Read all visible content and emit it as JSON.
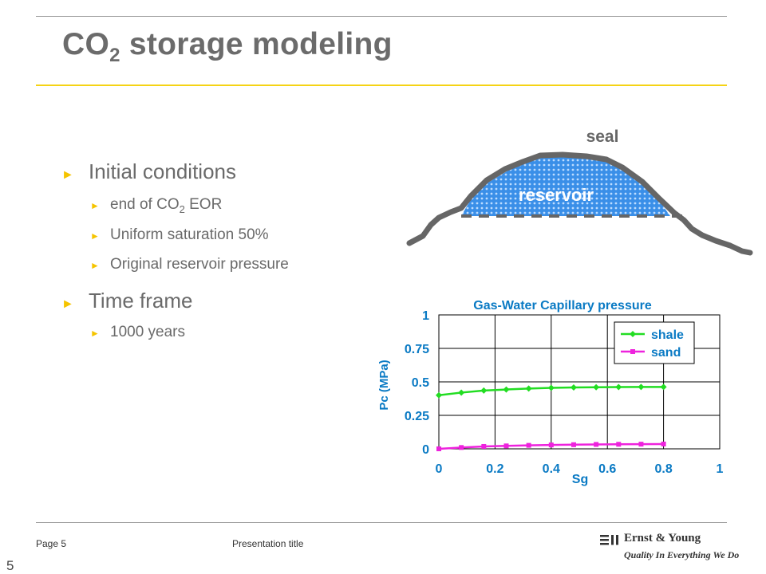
{
  "slide": {
    "title_main": "CO",
    "title_sub": "2",
    "title_rest": " storage modeling"
  },
  "bullets": {
    "initial_conditions": "Initial conditions",
    "eor_pre": "end of CO",
    "eor_sub": "2",
    "eor_post": " EOR",
    "uniform_saturation": "Uniform saturation 50%",
    "original_pressure": "Original reservoir pressure",
    "time_frame": "Time frame",
    "years": "1000 years"
  },
  "diagram": {
    "seal_label": "seal",
    "reservoir_label": "reservoir"
  },
  "chart_data": {
    "type": "line",
    "title": "Gas-Water Capillary pressure",
    "xlabel": "Sg",
    "ylabel": "Pc (MPa)",
    "xlim": [
      0,
      1
    ],
    "ylim": [
      0,
      1
    ],
    "x_ticks": [
      "0",
      "0.2",
      "0.4",
      "0.6",
      "0.8",
      "1"
    ],
    "y_ticks": [
      "0",
      "0.25",
      "0.5",
      "0.75",
      "1"
    ],
    "grid": true,
    "legend": "top-right",
    "series": [
      {
        "name": "shale",
        "color": "#22dd22",
        "x": [
          0,
          0.08,
          0.16,
          0.24,
          0.32,
          0.4,
          0.48,
          0.56,
          0.64,
          0.72,
          0.8
        ],
        "values": [
          0.4,
          0.42,
          0.435,
          0.443,
          0.45,
          0.455,
          0.458,
          0.46,
          0.461,
          0.462,
          0.462
        ]
      },
      {
        "name": "sand",
        "color": "#ee22dd",
        "x": [
          0,
          0.08,
          0.16,
          0.24,
          0.32,
          0.4,
          0.48,
          0.56,
          0.64,
          0.72,
          0.8
        ],
        "values": [
          0.0,
          0.01,
          0.018,
          0.022,
          0.026,
          0.029,
          0.031,
          0.033,
          0.034,
          0.035,
          0.036
        ]
      }
    ]
  },
  "footer": {
    "page": "Page 5",
    "presentation_title": "Presentation title",
    "slide_number": "5",
    "logo_name": "Ernst & Young",
    "logo_tagline": "Quality In Everything We Do"
  }
}
